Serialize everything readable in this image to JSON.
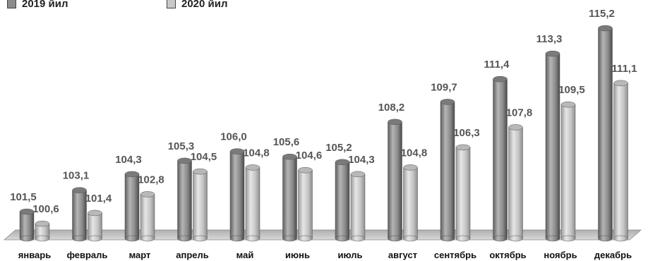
{
  "chart_data": {
    "type": "bar",
    "categories": [
      "январь",
      "февраль",
      "март",
      "апрель",
      "май",
      "июнь",
      "июль",
      "август",
      "сентябрь",
      "октябрь",
      "ноябрь",
      "декабрь"
    ],
    "series": [
      {
        "name": "2019 йил",
        "values": [
          101.5,
          103.1,
          104.3,
          105.3,
          106.0,
          105.6,
          105.2,
          108.2,
          109.7,
          111.4,
          113.3,
          115.2
        ],
        "labels": [
          "101,5",
          "103,1",
          "104,3",
          "105,3",
          "106,0",
          "105,6",
          "105,2",
          "108,2",
          "109,7",
          "111,4",
          "113,3",
          "115,2"
        ],
        "color": "#8c8c8c"
      },
      {
        "name": "2020 йил",
        "values": [
          100.6,
          101.4,
          102.8,
          104.5,
          104.8,
          104.6,
          104.3,
          104.8,
          106.3,
          107.8,
          109.5,
          111.1
        ],
        "labels": [
          "100,6",
          "101,4",
          "102,8",
          "104,5",
          "104,8",
          "104,6",
          "104,3",
          "104,8",
          "106,3",
          "107,8",
          "109,5",
          "111,1"
        ],
        "color": "#c8c8c8"
      }
    ],
    "title": "",
    "xlabel": "",
    "ylabel": "",
    "ylim": [
      99.5,
      115.2
    ],
    "grid": false,
    "legend": "top-left",
    "style": "3d-cylinder"
  }
}
